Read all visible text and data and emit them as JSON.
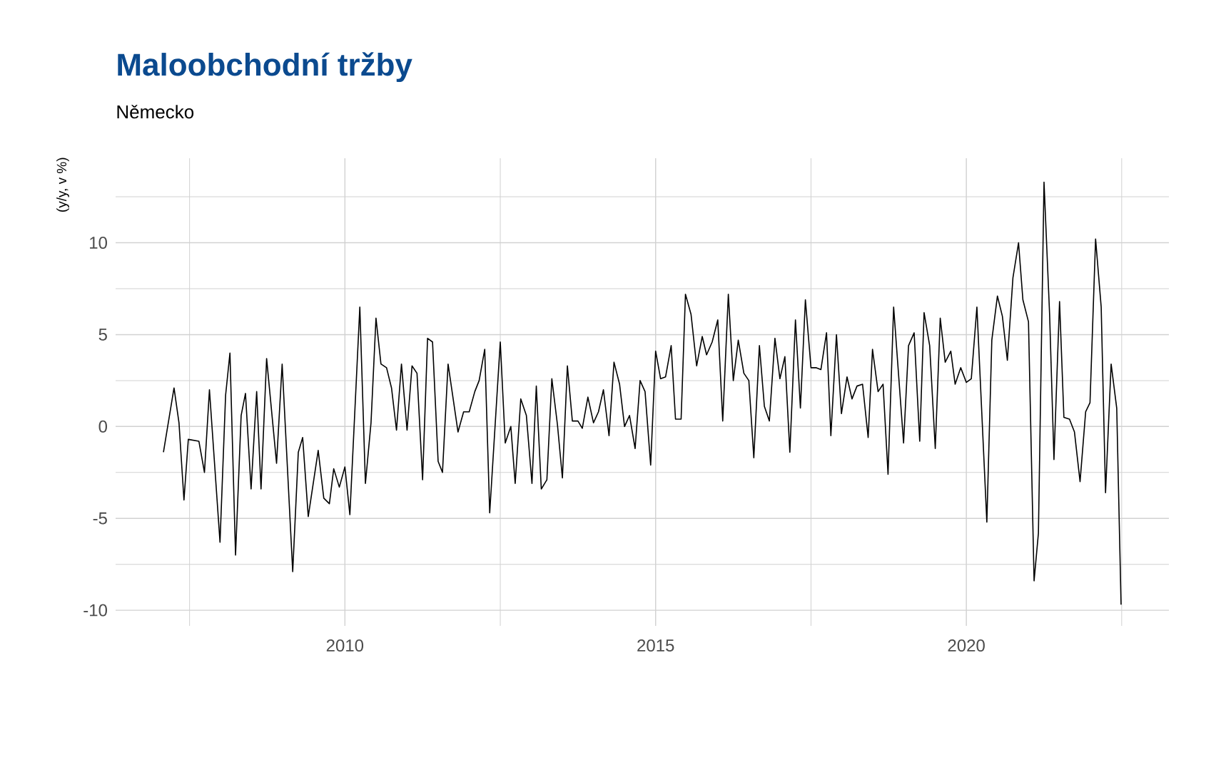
{
  "chart_data": {
    "type": "line",
    "title": "Maloobchodní tržby",
    "subtitle": "Německo",
    "ylabel": "(y/y, v %)",
    "xlim": [
      2006.31,
      2023.26
    ],
    "ylim": [
      -10.85,
      14.6
    ],
    "xticks": [
      2010,
      2015,
      2020
    ],
    "yticks": [
      -10,
      -5,
      0,
      5,
      10
    ],
    "grid": true,
    "series": [
      {
        "color": "#000000",
        "x": [
          2007.08,
          2007.25,
          2007.33,
          2007.41,
          2007.48,
          2007.65,
          2007.74,
          2007.82,
          2007.99,
          2008.08,
          2008.15,
          2008.24,
          2008.33,
          2008.4,
          2008.49,
          2008.58,
          2008.65,
          2008.74,
          2008.9,
          2008.99,
          2009.16,
          2009.25,
          2009.32,
          2009.41,
          2009.57,
          2009.66,
          2009.75,
          2009.82,
          2009.91,
          2010.0,
          2010.08,
          2010.24,
          2010.33,
          2010.42,
          2010.5,
          2010.58,
          2010.67,
          2010.75,
          2010.83,
          2010.91,
          2011.0,
          2011.08,
          2011.16,
          2011.25,
          2011.33,
          2011.41,
          2011.5,
          2011.57,
          2011.66,
          2011.82,
          2011.91,
          2012.0,
          2012.09,
          2012.16,
          2012.25,
          2012.33,
          2012.5,
          2012.58,
          2012.67,
          2012.74,
          2012.83,
          2012.92,
          2013.01,
          2013.08,
          2013.16,
          2013.25,
          2013.33,
          2013.42,
          2013.5,
          2013.58,
          2013.66,
          2013.75,
          2013.82,
          2013.91,
          2014.0,
          2014.08,
          2014.16,
          2014.25,
          2014.33,
          2014.42,
          2014.5,
          2014.58,
          2014.67,
          2014.75,
          2014.83,
          2014.92,
          2015.0,
          2015.08,
          2015.16,
          2015.25,
          2015.32,
          2015.41,
          2015.48,
          2015.57,
          2015.66,
          2015.75,
          2015.82,
          2015.91,
          2016.0,
          2016.08,
          2016.17,
          2016.25,
          2016.33,
          2016.42,
          2016.5,
          2016.58,
          2016.67,
          2016.75,
          2016.83,
          2016.92,
          2017.0,
          2017.08,
          2017.16,
          2017.25,
          2017.33,
          2017.41,
          2017.5,
          2017.58,
          2017.66,
          2017.75,
          2017.82,
          2017.91,
          2017.99,
          2018.08,
          2018.16,
          2018.24,
          2018.33,
          2018.42,
          2018.49,
          2018.58,
          2018.66,
          2018.74,
          2018.83,
          2018.99,
          2019.07,
          2019.16,
          2019.25,
          2019.32,
          2019.41,
          2019.5,
          2019.58,
          2019.66,
          2019.75,
          2019.82,
          2019.91,
          2020.0,
          2020.08,
          2020.17,
          2020.33,
          2020.41,
          2020.5,
          2020.58,
          2020.66,
          2020.75,
          2020.84,
          2020.91,
          2021.0,
          2021.09,
          2021.16,
          2021.25,
          2021.34,
          2021.41,
          2021.5,
          2021.57,
          2021.66,
          2021.74,
          2021.83,
          2021.92,
          2021.99,
          2022.08,
          2022.17,
          2022.24,
          2022.33,
          2022.42,
          2022.49
        ],
        "values": [
          -1.4,
          2.1,
          0.2,
          -4.0,
          -0.7,
          -0.8,
          -2.5,
          2.0,
          -6.3,
          1.7,
          4.0,
          -7.0,
          0.6,
          1.8,
          -3.4,
          1.9,
          -3.4,
          3.7,
          -2.0,
          3.4,
          -7.9,
          -1.4,
          -0.6,
          -4.9,
          -1.3,
          -3.9,
          -4.2,
          -2.3,
          -3.3,
          -2.2,
          -4.8,
          6.5,
          -3.1,
          0.2,
          5.9,
          3.4,
          3.2,
          2.1,
          -0.2,
          3.4,
          -0.2,
          3.3,
          2.9,
          -2.9,
          4.8,
          4.6,
          -1.9,
          -2.5,
          3.4,
          -0.3,
          0.8,
          0.8,
          1.9,
          2.5,
          4.2,
          -4.7,
          4.6,
          -0.9,
          0.0,
          -3.1,
          1.5,
          0.6,
          -3.1,
          2.2,
          -3.4,
          -2.9,
          2.6,
          0.1,
          -2.8,
          3.3,
          0.3,
          0.3,
          -0.1,
          1.6,
          0.2,
          0.8,
          2.0,
          -0.5,
          3.5,
          2.3,
          0.0,
          0.6,
          -1.2,
          2.5,
          1.9,
          -2.1,
          4.1,
          2.6,
          2.7,
          4.4,
          0.4,
          0.4,
          7.2,
          6.1,
          3.3,
          4.9,
          3.9,
          4.6,
          5.8,
          0.3,
          7.2,
          2.5,
          4.7,
          2.9,
          2.5,
          -1.7,
          4.4,
          1.1,
          0.3,
          4.8,
          2.6,
          3.8,
          -1.4,
          5.8,
          1.0,
          6.9,
          3.2,
          3.2,
          3.1,
          5.1,
          -0.5,
          5.0,
          0.7,
          2.7,
          1.5,
          2.2,
          2.3,
          -0.6,
          4.2,
          1.9,
          2.3,
          -2.6,
          6.5,
          -0.9,
          4.4,
          5.1,
          -0.8,
          6.2,
          4.4,
          -1.2,
          5.9,
          3.5,
          4.1,
          2.3,
          3.2,
          2.4,
          2.6,
          6.5,
          -5.2,
          4.7,
          7.1,
          6.0,
          3.6,
          8.1,
          10.0,
          6.9,
          5.7,
          -8.4,
          -5.8,
          13.3,
          6.1,
          -1.8,
          6.8,
          0.5,
          0.4,
          -0.3,
          -3.0,
          0.8,
          1.3,
          10.2,
          6.5,
          -3.6,
          3.4,
          1.0,
          -9.7
        ]
      }
    ]
  }
}
